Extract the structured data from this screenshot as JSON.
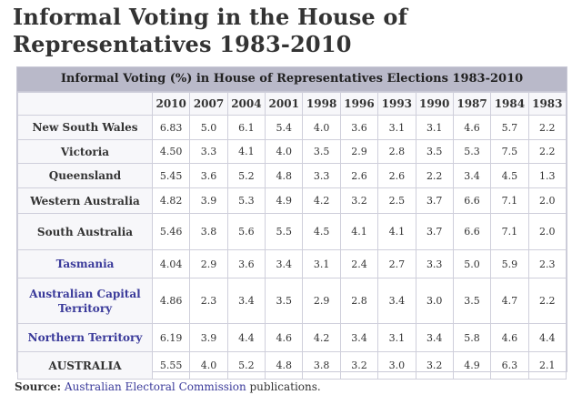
{
  "title": "Informal Voting in the House of Representatives 1983-2010",
  "table": {
    "caption": "Informal Voting (%) in House of Representatives Elections 1983-2010",
    "years": [
      "2010",
      "2007",
      "2004",
      "2001",
      "1998",
      "1996",
      "1993",
      "1990",
      "1987",
      "1984",
      "1983"
    ],
    "rows": [
      {
        "label": "New South Wales",
        "link": false,
        "values": [
          "6.83",
          "5.0",
          "6.1",
          "5.4",
          "4.0",
          "3.6",
          "3.1",
          "3.1",
          "4.6",
          "5.7",
          "2.2"
        ]
      },
      {
        "label": "Victoria",
        "link": false,
        "values": [
          "4.50",
          "3.3",
          "4.1",
          "4.0",
          "3.5",
          "2.9",
          "2.8",
          "3.5",
          "5.3",
          "7.5",
          "2.2"
        ]
      },
      {
        "label": "Queensland",
        "link": false,
        "values": [
          "5.45",
          "3.6",
          "5.2",
          "4.8",
          "3.3",
          "2.6",
          "2.6",
          "2.2",
          "3.4",
          "4.5",
          "1.3"
        ]
      },
      {
        "label": "Western Australia",
        "link": false,
        "values": [
          "4.82",
          "3.9",
          "5.3",
          "4.9",
          "4.2",
          "3.2",
          "2.5",
          "3.7",
          "6.6",
          "7.1",
          "2.0"
        ]
      },
      {
        "label": "South Australia",
        "link": false,
        "values": [
          "5.46",
          "3.8",
          "5.6",
          "5.5",
          "4.5",
          "4.1",
          "4.1",
          "3.7",
          "6.6",
          "7.1",
          "2.0"
        ]
      },
      {
        "label": "Tasmania",
        "link": true,
        "values": [
          "4.04",
          "2.9",
          "3.6",
          "3.4",
          "3.1",
          "2.4",
          "2.7",
          "3.3",
          "5.0",
          "5.9",
          "2.3"
        ]
      },
      {
        "label": "Australian Capital Territory",
        "link": true,
        "values": [
          "4.86",
          "2.3",
          "3.4",
          "3.5",
          "2.9",
          "2.8",
          "3.4",
          "3.0",
          "3.5",
          "4.7",
          "2.2"
        ]
      },
      {
        "label": "Northern Territory",
        "link": true,
        "values": [
          "6.19",
          "3.9",
          "4.4",
          "4.6",
          "4.2",
          "3.4",
          "3.1",
          "3.4",
          "5.8",
          "4.6",
          "4.4"
        ]
      },
      {
        "label": "AUSTRALIA",
        "link": false,
        "values": [
          "5.55",
          "4.0",
          "5.2",
          "4.8",
          "3.8",
          "3.2",
          "3.0",
          "3.2",
          "4.9",
          "6.3",
          "2.1"
        ]
      }
    ]
  },
  "source": {
    "label": "Source:",
    "link_text": "Australian Electoral Commission",
    "suffix": " publications."
  }
}
